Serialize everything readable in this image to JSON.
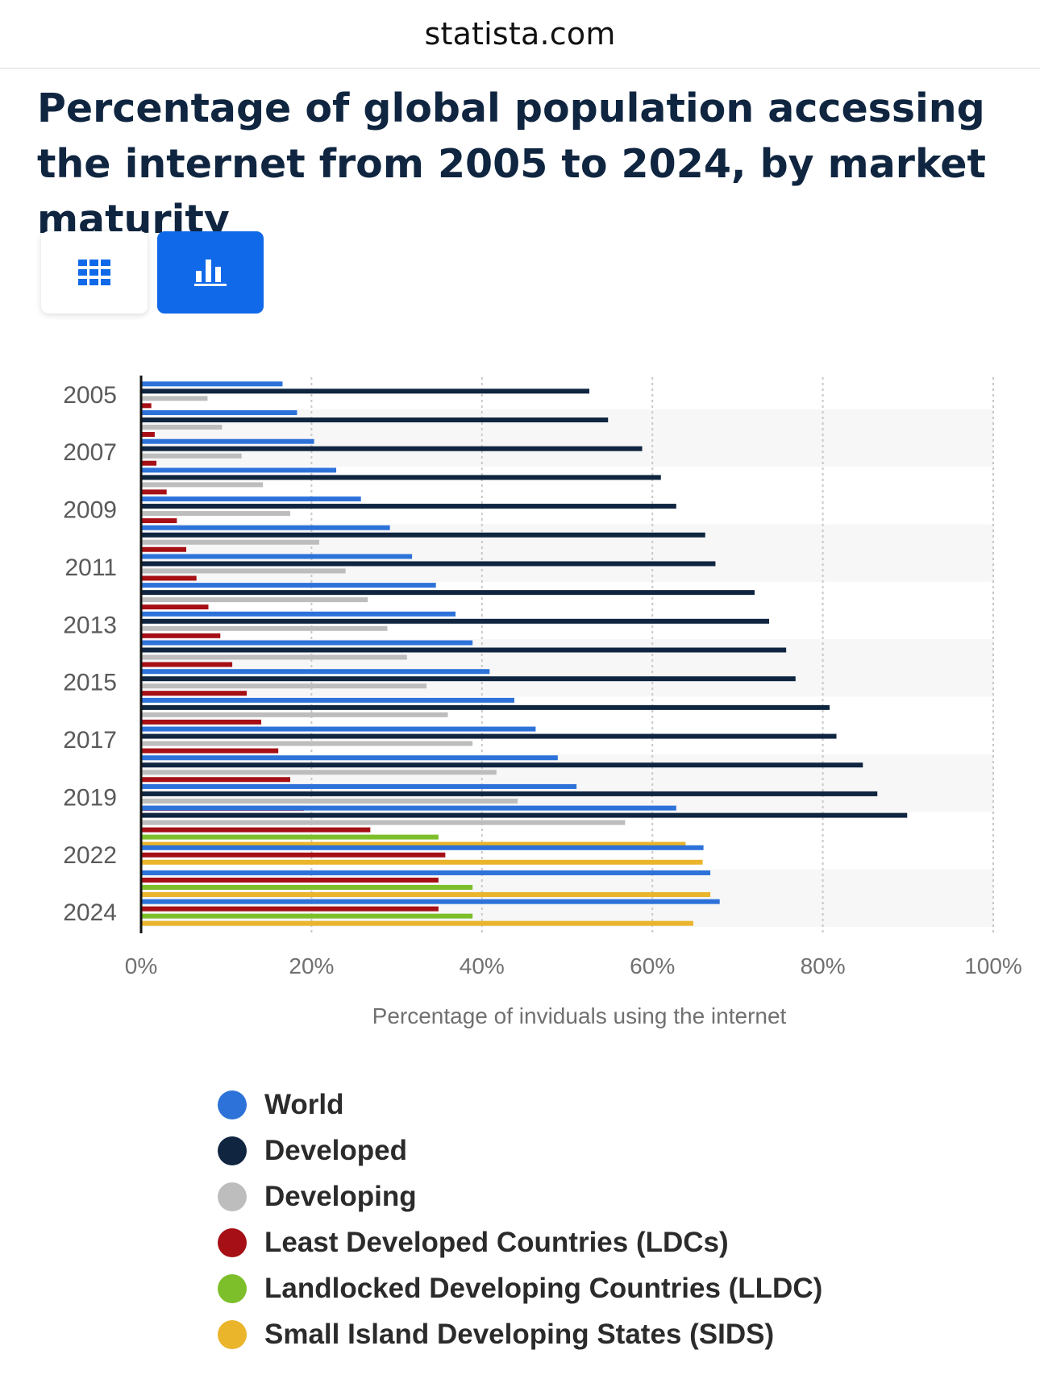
{
  "header": {
    "site": "statista.com"
  },
  "title": "Percentage of global population accessing the internet from 2005 to 2024, by market maturity",
  "toolbar": {
    "table_view_icon": "table-grid-icon",
    "chart_view_icon": "bar-chart-icon",
    "active": "chart"
  },
  "colors": {
    "World": "#2d72d9",
    "Developed": "#0f2540",
    "Developing": "#bdbdbd",
    "LDCs": "#a50f15",
    "LLDC": "#7dbf2a",
    "SIDS": "#eab42b",
    "accent": "#1069e8"
  },
  "chart_data": {
    "type": "bar",
    "orientation": "horizontal",
    "title": "Percentage of global population accessing the internet from 2005 to 2024, by market maturity",
    "xlabel": "Percentage of inviduals using the internet",
    "ylabel": "",
    "xlim": [
      0,
      100
    ],
    "xticks": [
      "0%",
      "20%",
      "40%",
      "60%",
      "80%",
      "100%"
    ],
    "ytick_labels": [
      "2005",
      "2007",
      "2009",
      "2011",
      "2013",
      "2015",
      "2017",
      "2019",
      "2022",
      "2024"
    ],
    "categories": [
      "2005",
      "2006",
      "2007",
      "2008",
      "2009",
      "2010",
      "2011",
      "2012",
      "2013",
      "2014",
      "2015",
      "2016",
      "2017",
      "2018",
      "2019",
      "2021",
      "2022",
      "2023",
      "2024"
    ],
    "series": [
      {
        "name": "World",
        "color": "#2d72d9",
        "values": [
          16.6,
          18.3,
          20.3,
          22.9,
          25.8,
          29.2,
          31.8,
          34.6,
          36.9,
          38.9,
          40.9,
          43.8,
          46.3,
          48.9,
          51.1,
          62.8,
          66,
          66.8,
          67.9
        ]
      },
      {
        "name": "Developed",
        "color": "#0f2540",
        "values": [
          52.6,
          54.8,
          58.8,
          61,
          62.8,
          66.2,
          67.4,
          72,
          73.7,
          75.7,
          76.8,
          80.8,
          81.6,
          84.7,
          86.4,
          89.9,
          null,
          null,
          null
        ]
      },
      {
        "name": "Developing",
        "color": "#bdbdbd",
        "values": [
          7.8,
          9.5,
          11.8,
          14.3,
          17.5,
          20.9,
          24,
          26.6,
          28.9,
          31.2,
          33.5,
          36,
          38.9,
          41.7,
          44.2,
          56.8,
          null,
          null,
          null
        ]
      },
      {
        "name": "Least Developed Countries (LDCs)",
        "color": "#a50f15",
        "values": [
          1.2,
          1.6,
          1.8,
          3,
          4.2,
          5.3,
          6.5,
          7.9,
          9.3,
          10.7,
          12.4,
          14.1,
          16.1,
          17.5,
          19.1,
          26.9,
          35.7,
          34.9,
          34.9
        ]
      },
      {
        "name": "Landlocked Developing Countries (LLDC)",
        "color": "#7dbf2a",
        "values": [
          null,
          null,
          null,
          null,
          null,
          null,
          null,
          null,
          null,
          null,
          null,
          null,
          null,
          null,
          null,
          34.9,
          null,
          38.9,
          38.9
        ]
      },
      {
        "name": "Small Island Developing States (SIDS)",
        "color": "#eab42b",
        "values": [
          null,
          null,
          null,
          null,
          null,
          null,
          null,
          null,
          null,
          null,
          null,
          null,
          null,
          null,
          null,
          63.9,
          65.9,
          66.8,
          64.8
        ]
      }
    ]
  },
  "legend": [
    {
      "label": "World",
      "color": "#2d72d9"
    },
    {
      "label": "Developed",
      "color": "#0f2540"
    },
    {
      "label": "Developing",
      "color": "#bdbdbd"
    },
    {
      "label": "Least Developed Countries (LDCs)",
      "color": "#a50f15"
    },
    {
      "label": "Landlocked Developing Countries (LLDC)",
      "color": "#7dbf2a"
    },
    {
      "label": "Small Island Developing States (SIDS)",
      "color": "#eab42b"
    }
  ]
}
